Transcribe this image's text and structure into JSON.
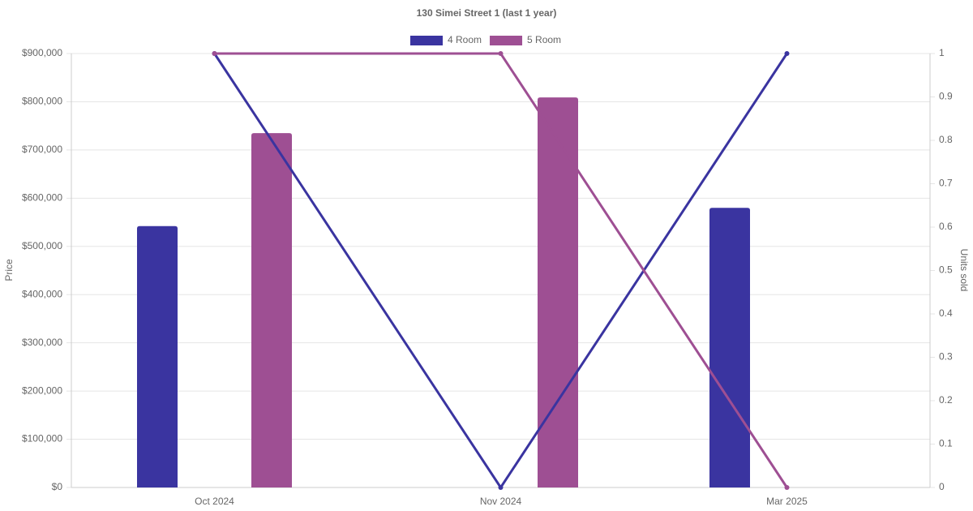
{
  "chart_data": {
    "type": "bar-line",
    "title": "130 Simei Street 1 (last 1 year)",
    "y_label": "Price",
    "y2_label": "Units sold",
    "categories": [
      "Oct 2024",
      "Nov 2024",
      "Mar 2025"
    ],
    "series": [
      {
        "name": "4 Room",
        "color": "#3a34a0",
        "values": [
          542000,
          null,
          580000
        ],
        "units_sold": [
          1,
          0,
          1
        ]
      },
      {
        "name": "5 Room",
        "color": "#9e4f93",
        "values": [
          735000,
          809000,
          null
        ],
        "units_sold": [
          1,
          1,
          0
        ]
      }
    ],
    "ylim": [
      0,
      900000
    ],
    "yticks": [
      {
        "value": 0,
        "label": "$0"
      },
      {
        "value": 100000,
        "label": "$100,000"
      },
      {
        "value": 200000,
        "label": "$200,000"
      },
      {
        "value": 300000,
        "label": "$300,000"
      },
      {
        "value": 400000,
        "label": "$400,000"
      },
      {
        "value": 500000,
        "label": "$500,000"
      },
      {
        "value": 600000,
        "label": "$600,000"
      },
      {
        "value": 700000,
        "label": "$700,000"
      },
      {
        "value": 800000,
        "label": "$800,000"
      },
      {
        "value": 900000,
        "label": "$900,000"
      }
    ],
    "y2lim": [
      0,
      1
    ],
    "y2ticks": [
      0,
      0.1,
      0.2,
      0.3,
      0.4,
      0.5,
      0.6,
      0.7,
      0.8,
      0.9,
      1
    ],
    "grid": true,
    "legend": "top"
  }
}
